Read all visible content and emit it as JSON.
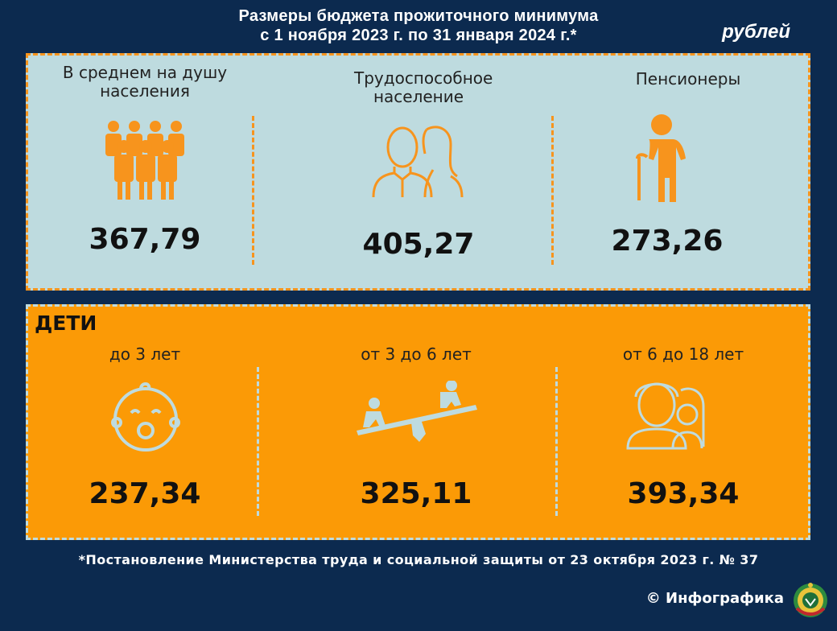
{
  "header": {
    "title_line1": "Размеры бюджета прожиточного минимума",
    "title_line2": "с 1 ноября 2023 г. по 31 января 2024 г.*",
    "unit": "рублей"
  },
  "adults": [
    {
      "label": "В среднем на душу населения",
      "value": "367,79",
      "icon": "people-group-icon"
    },
    {
      "label": "Трудоспособное население",
      "value": "405,27",
      "icon": "man-woman-icon"
    },
    {
      "label": "Пенсионеры",
      "value": "273,26",
      "icon": "elderly-with-cane-icon"
    }
  ],
  "children": {
    "heading": "ДЕТИ",
    "items": [
      {
        "label": "до 3 лет",
        "value": "237,34",
        "icon": "baby-face-icon"
      },
      {
        "label": "от 3 до 6 лет",
        "value": "325,11",
        "icon": "seesaw-icon"
      },
      {
        "label": "от 6 до 18 лет",
        "value": "393,34",
        "icon": "boy-girl-icon"
      }
    ]
  },
  "footer": {
    "note": "*Постановление Министерства труда и социальной защиты от 23 октября 2023 г. № 37",
    "copyright": "© Инфографика"
  },
  "colors": {
    "background": "#0c2a4f",
    "panel_light": "#bedbdf",
    "orange": "#fb9a06"
  }
}
